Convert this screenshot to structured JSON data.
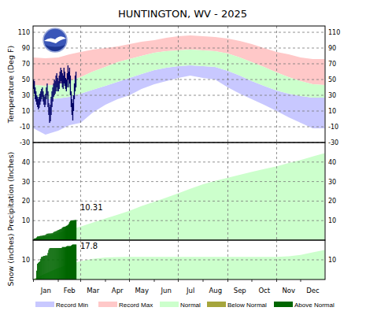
{
  "chart_data": [
    {
      "type": "area",
      "title": "HUNTINGTON, WV - 2025",
      "y_label": "Temperature (Deg F)",
      "xlim": [
        0.5,
        365.5
      ],
      "xticks": [
        {
          "value": 1,
          "label": "Jan"
        },
        {
          "value": 32,
          "label": "Feb"
        },
        {
          "value": 60,
          "label": "Mar"
        },
        {
          "value": 91,
          "label": "Apr"
        },
        {
          "value": 121,
          "label": "May"
        },
        {
          "value": 152,
          "label": "Jun"
        },
        {
          "value": 182,
          "label": "Jul"
        },
        {
          "value": 213,
          "label": "Aug"
        },
        {
          "value": 244,
          "label": "Sep"
        },
        {
          "value": 274,
          "label": "Oct"
        },
        {
          "value": 305,
          "label": "Nov"
        },
        {
          "value": 335,
          "label": "Dec"
        }
      ],
      "ylim": [
        -30,
        118
      ],
      "yticks": [
        -30,
        -10,
        10,
        30,
        50,
        70,
        90,
        110
      ],
      "grid": true,
      "tick_labels": "y",
      "legend": "bottom",
      "series": [
        {
          "name": "Record Min",
          "color": "#c8c8ff",
          "type": "area",
          "x": [
            1,
            16,
            32,
            46,
            60,
            75,
            91,
            106,
            121,
            136,
            152,
            167,
            182,
            197,
            213,
            228,
            244,
            259,
            274,
            289,
            305,
            320,
            335,
            350,
            365
          ],
          "values": [
            -12,
            -20,
            -15,
            -8,
            -5,
            8,
            18,
            25,
            30,
            38,
            44,
            48,
            52,
            55,
            52,
            50,
            40,
            32,
            25,
            18,
            10,
            2,
            -5,
            -12,
            -12
          ]
        },
        {
          "name": "Record Max",
          "color": "#ffc8c8",
          "type": "area",
          "x": [
            1,
            16,
            32,
            46,
            60,
            75,
            91,
            106,
            121,
            136,
            152,
            167,
            182,
            197,
            213,
            228,
            244,
            259,
            274,
            289,
            305,
            320,
            335,
            350,
            365
          ],
          "values": [
            78,
            77,
            78,
            82,
            85,
            88,
            90,
            92,
            95,
            98,
            100,
            103,
            105,
            106,
            105,
            104,
            102,
            99,
            95,
            90,
            85,
            82,
            78,
            76,
            76
          ]
        },
        {
          "name": "Normal",
          "color": "#ccffcc",
          "type": "area",
          "x": [
            1,
            16,
            32,
            46,
            60,
            75,
            91,
            106,
            121,
            136,
            152,
            167,
            182,
            197,
            213,
            228,
            244,
            259,
            274,
            289,
            305,
            320,
            335,
            350,
            365
          ],
          "values": [
            43,
            42,
            44,
            48,
            53,
            60,
            66,
            72,
            76,
            80,
            84,
            86,
            87,
            88,
            87,
            86,
            83,
            78,
            72,
            66,
            59,
            53,
            48,
            44,
            43
          ],
          "values_low": [
            27,
            25,
            26,
            28,
            32,
            37,
            42,
            47,
            52,
            57,
            62,
            65,
            67,
            68,
            67,
            66,
            61,
            55,
            48,
            42,
            36,
            32,
            29,
            27,
            27
          ]
        },
        {
          "color": "#000066",
          "type": "bar",
          "x": [
            1,
            2,
            3,
            4,
            5,
            6,
            7,
            8,
            9,
            10,
            11,
            12,
            13,
            14,
            15,
            16,
            17,
            18,
            19,
            20,
            21,
            22,
            23,
            24,
            25,
            26,
            27,
            28,
            29,
            30,
            31,
            32,
            33,
            34,
            35,
            36,
            37,
            38,
            39,
            40,
            41,
            42,
            43,
            44,
            45,
            46,
            47,
            48,
            49,
            50,
            51,
            52,
            53,
            54
          ],
          "values": [
            50,
            48,
            40,
            35,
            30,
            28,
            25,
            28,
            32,
            35,
            38,
            40,
            35,
            30,
            28,
            32,
            40,
            45,
            35,
            20,
            15,
            18,
            28,
            35,
            40,
            45,
            50,
            48,
            55,
            58,
            52,
            48,
            55,
            60,
            65,
            62,
            58,
            55,
            65,
            60,
            52,
            50,
            58,
            68,
            60,
            65,
            55,
            35,
            25,
            20,
            30,
            45,
            55,
            60
          ],
          "values_low": [
            38,
            32,
            25,
            22,
            18,
            15,
            12,
            14,
            18,
            22,
            25,
            28,
            22,
            18,
            15,
            18,
            25,
            30,
            15,
            5,
            -5,
            -3,
            5,
            15,
            22,
            28,
            30,
            32,
            35,
            40,
            35,
            35,
            38,
            45,
            48,
            45,
            40,
            38,
            45,
            42,
            38,
            35,
            40,
            50,
            40,
            45,
            30,
            15,
            5,
            -2,
            10,
            25,
            35,
            40
          ]
        }
      ]
    },
    {
      "type": "area",
      "y_label": "Precipitation (Inches)",
      "annotation": "10.31",
      "xlim": [
        0.5,
        365.5
      ],
      "xticks": [
        {
          "value": 1,
          "label": "Jan"
        },
        {
          "value": 32,
          "label": "Feb"
        },
        {
          "value": 60,
          "label": "Mar"
        },
        {
          "value": 91,
          "label": "Apr"
        },
        {
          "value": 121,
          "label": "May"
        },
        {
          "value": 152,
          "label": "Jun"
        },
        {
          "value": 182,
          "label": "Jul"
        },
        {
          "value": 213,
          "label": "Aug"
        },
        {
          "value": 244,
          "label": "Sep"
        },
        {
          "value": 274,
          "label": "Oct"
        },
        {
          "value": 305,
          "label": "Nov"
        },
        {
          "value": 335,
          "label": "Dec"
        }
      ],
      "ylim": [
        0,
        50
      ],
      "yticks": [
        10,
        20,
        30,
        40
      ],
      "grid": true,
      "tick_labels": "y",
      "series": [
        {
          "name": "Normal",
          "color": "#ccffcc",
          "type": "area",
          "x": [
            1,
            16,
            32,
            46,
            60,
            75,
            91,
            106,
            121,
            136,
            152,
            167,
            182,
            197,
            213,
            228,
            244,
            259,
            274,
            289,
            305,
            320,
            335,
            350,
            365
          ],
          "values": [
            0.1,
            1.8,
            3.6,
            5.3,
            7.0,
            9.0,
            11.1,
            13.0,
            15.0,
            17.4,
            19.7,
            21.8,
            24.0,
            26.3,
            28.6,
            30.3,
            32.0,
            33.5,
            35.0,
            36.4,
            37.8,
            39.5,
            41.0,
            42.8,
            44.6
          ]
        },
        {
          "name": "Above Normal",
          "color": "#006600",
          "type": "bar",
          "x": [
            1,
            2,
            3,
            4,
            5,
            6,
            7,
            8,
            9,
            10,
            11,
            12,
            13,
            14,
            15,
            16,
            17,
            18,
            19,
            20,
            21,
            22,
            23,
            24,
            25,
            26,
            27,
            28,
            29,
            30,
            31,
            32,
            33,
            34,
            35,
            36,
            37,
            38,
            39,
            40,
            41,
            42,
            43,
            44,
            45,
            46,
            47,
            48,
            49,
            50,
            51,
            52,
            53,
            54
          ],
          "values": [
            0.3,
            0.8,
            0.9,
            1.0,
            1.4,
            1.9,
            1.9,
            2.0,
            2.1,
            2.2,
            2.2,
            2.3,
            2.4,
            2.5,
            2.5,
            2.7,
            3.0,
            3.3,
            3.3,
            3.4,
            3.4,
            3.4,
            3.5,
            3.5,
            3.6,
            4.0,
            4.3,
            4.4,
            4.6,
            4.7,
            5.0,
            5.2,
            5.3,
            5.6,
            5.7,
            5.9,
            6.4,
            6.7,
            6.8,
            6.9,
            7.0,
            7.3,
            7.5,
            7.8,
            8.3,
            9.2,
            9.9,
            10.0,
            10.1,
            10.1,
            10.2,
            10.25,
            10.3,
            10.31
          ]
        }
      ]
    },
    {
      "type": "area",
      "y_label": "Snow (inches)",
      "annotation": "17.8",
      "xlim": [
        0.5,
        365.5
      ],
      "xticks": [
        {
          "value": 1,
          "label": "Jan"
        },
        {
          "value": 32,
          "label": "Feb"
        },
        {
          "value": 60,
          "label": "Mar"
        },
        {
          "value": 91,
          "label": "Apr"
        },
        {
          "value": 121,
          "label": "May"
        },
        {
          "value": 152,
          "label": "Jun"
        },
        {
          "value": 182,
          "label": "Jul"
        },
        {
          "value": 213,
          "label": "Aug"
        },
        {
          "value": 244,
          "label": "Sep"
        },
        {
          "value": 274,
          "label": "Oct"
        },
        {
          "value": 305,
          "label": "Nov"
        },
        {
          "value": 335,
          "label": "Dec"
        }
      ],
      "ylim": [
        0,
        20
      ],
      "yticks": [
        10
      ],
      "grid": true,
      "series": [
        {
          "name": "Normal",
          "color": "#ccffcc",
          "type": "area",
          "x": [
            1,
            16,
            32,
            46,
            60,
            75,
            91,
            106,
            121,
            136,
            152,
            167,
            182,
            197,
            213,
            228,
            244,
            259,
            274,
            289,
            305,
            320,
            335,
            350,
            365
          ],
          "values": [
            0.2,
            3.0,
            5.8,
            7.8,
            9.3,
            10.5,
            11.2,
            11.4,
            11.5,
            11.5,
            11.5,
            11.5,
            11.5,
            11.5,
            11.5,
            11.5,
            11.5,
            11.5,
            11.5,
            11.5,
            11.5,
            11.8,
            12.5,
            13.8,
            15.0
          ]
        },
        {
          "name": "Below Normal",
          "color": "#a5a53c",
          "type": "bar",
          "x": [
            1,
            2,
            3,
            4,
            5,
            6,
            7,
            8,
            9,
            10,
            11,
            12,
            13,
            14,
            15,
            16,
            17,
            18,
            19,
            20,
            21,
            22,
            23,
            24,
            25,
            26,
            27,
            28,
            29,
            30,
            31,
            32,
            33,
            34,
            35,
            36,
            37,
            38,
            39,
            40,
            41,
            42,
            43,
            44,
            45,
            46,
            47,
            48,
            49,
            50,
            51,
            52,
            53,
            54
          ],
          "values": [
            0,
            0,
            0,
            0.5,
            null,
            null,
            null,
            null,
            null,
            null,
            null,
            null,
            null,
            null,
            null,
            null,
            null,
            null,
            null,
            null,
            null,
            null,
            null,
            null,
            null,
            null,
            null,
            null,
            null,
            null,
            null,
            null,
            null,
            null,
            null,
            null,
            null,
            null,
            null,
            null,
            null,
            null,
            null,
            null,
            null,
            null,
            null,
            null,
            null,
            null,
            null,
            null,
            null,
            null
          ]
        },
        {
          "name": "Above Normal",
          "color": "#006600",
          "type": "bar",
          "x": [
            1,
            2,
            3,
            4,
            5,
            6,
            7,
            8,
            9,
            10,
            11,
            12,
            13,
            14,
            15,
            16,
            17,
            18,
            19,
            20,
            21,
            22,
            23,
            24,
            25,
            26,
            27,
            28,
            29,
            30,
            31,
            32,
            33,
            34,
            35,
            36,
            37,
            38,
            39,
            40,
            41,
            42,
            43,
            44,
            45,
            46,
            47,
            48,
            49,
            50,
            51,
            52,
            53,
            54
          ],
          "values": [
            null,
            null,
            null,
            null,
            4.5,
            8.0,
            8.5,
            8.8,
            9.2,
            10.5,
            11.5,
            11.5,
            11.8,
            12.0,
            12.0,
            12.2,
            12.2,
            12.2,
            13.5,
            15.0,
            15.8,
            16.0,
            16.0,
            16.0,
            16.0,
            16.0,
            16.0,
            16.0,
            16.0,
            16.0,
            16.0,
            16.0,
            16.0,
            16.0,
            16.0,
            16.0,
            16.5,
            16.5,
            16.5,
            16.5,
            16.5,
            16.8,
            17.0,
            17.0,
            17.0,
            17.0,
            17.0,
            17.2,
            17.6,
            17.8,
            17.8,
            17.8,
            17.8,
            17.8
          ]
        }
      ]
    }
  ]
}
